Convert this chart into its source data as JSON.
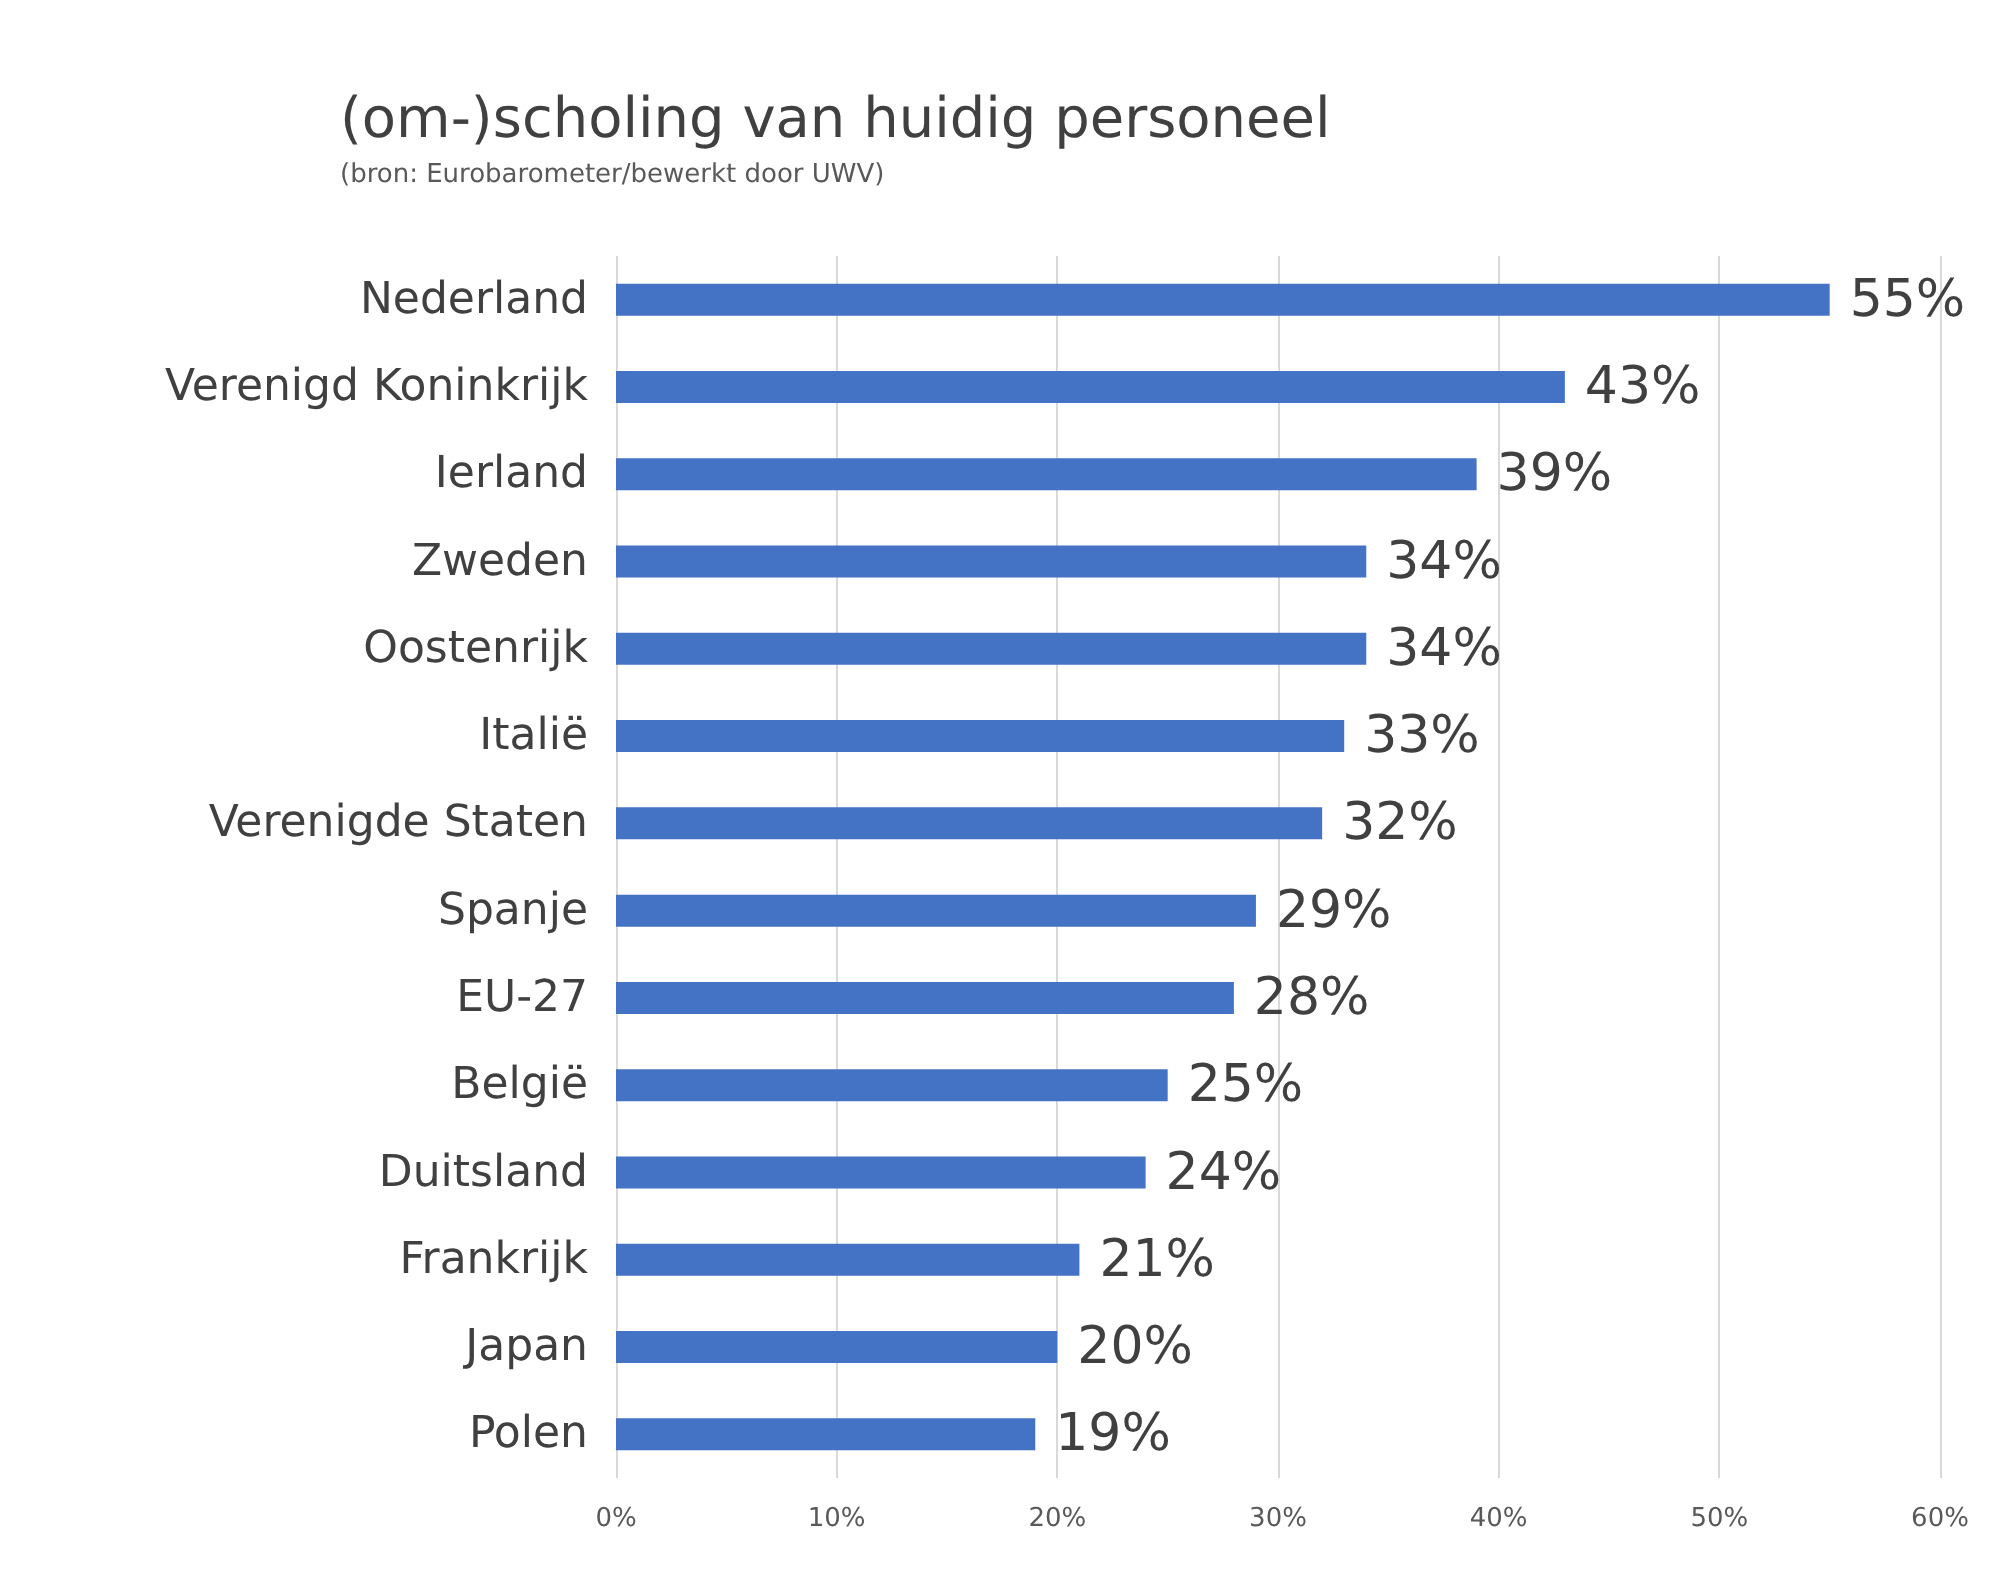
{
  "chart_data": {
    "type": "bar",
    "orientation": "horizontal",
    "title": "(om-)scholing van huidig personeel",
    "subtitle": "(bron: Eurobarometer/bewerkt door UWV)",
    "categories": [
      "Nederland",
      "Verenigd Koninkrijk",
      "Ierland",
      "Zweden",
      "Oostenrijk",
      "Italië",
      "Verenigde Staten",
      "Spanje",
      "EU-27",
      "België",
      "Duitsland",
      "Frankrijk",
      "Japan",
      "Polen"
    ],
    "values": [
      55,
      43,
      39,
      34,
      34,
      33,
      32,
      29,
      28,
      25,
      24,
      21,
      20,
      19
    ],
    "value_labels": [
      "55%",
      "43%",
      "39%",
      "34%",
      "34%",
      "33%",
      "32%",
      "29%",
      "28%",
      "25%",
      "24%",
      "21%",
      "20%",
      "19%"
    ],
    "color": "#4472c4",
    "xlim": [
      0,
      60
    ],
    "xticks": [
      {
        "value": 0,
        "label": "0%"
      },
      {
        "value": 10,
        "label": "10%"
      },
      {
        "value": 20,
        "label": "20%"
      },
      {
        "value": 30,
        "label": "30%"
      },
      {
        "value": 40,
        "label": "40%"
      },
      {
        "value": 50,
        "label": "50%"
      },
      {
        "value": 60,
        "label": "60%"
      }
    ],
    "grid": "x"
  }
}
